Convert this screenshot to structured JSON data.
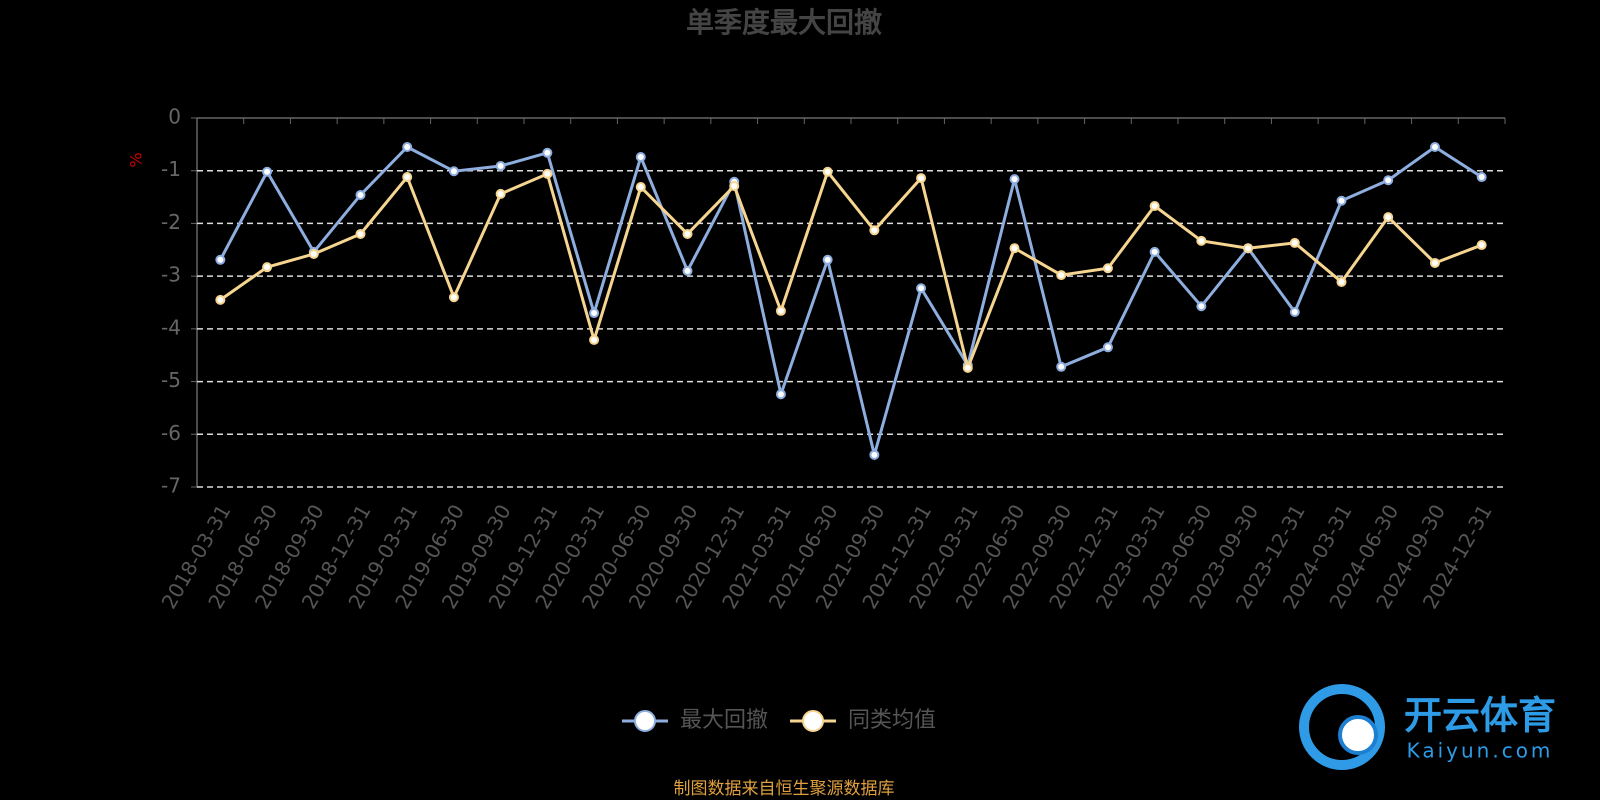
{
  "chart_data": {
    "type": "line",
    "title": "单季度最大回撤",
    "y_label": "%",
    "source": "制图数据来自恒生聚源数据库",
    "categories": [
      "2018-03-31",
      "2018-06-30",
      "2018-09-30",
      "2018-12-31",
      "2019-03-31",
      "2019-06-30",
      "2019-09-30",
      "2019-12-31",
      "2020-03-31",
      "2020-06-30",
      "2020-09-30",
      "2020-12-31",
      "2021-03-31",
      "2021-06-30",
      "2021-09-30",
      "2021-12-31",
      "2022-03-31",
      "2022-06-30",
      "2022-09-30",
      "2022-12-31",
      "2023-03-31",
      "2023-06-30",
      "2023-09-30",
      "2023-12-31",
      "2024-03-31",
      "2024-06-30",
      "2024-09-30",
      "2024-12-31"
    ],
    "series": [
      {
        "name": "最大回撤",
        "color": "#8eaee0",
        "values": [
          -2.69,
          -1.02,
          -2.54,
          -1.46,
          -0.55,
          -1.01,
          -0.91,
          -0.66,
          -3.7,
          -0.74,
          -2.9,
          -1.21,
          -5.24,
          -2.69,
          -6.39,
          -3.23,
          -4.69,
          -1.16,
          -4.72,
          -4.35,
          -2.54,
          -3.57,
          -2.47,
          -3.68,
          -1.57,
          -1.18,
          -0.55,
          -1.12
        ]
      },
      {
        "name": "同类均值",
        "color": "#f6d590",
        "values": [
          -3.45,
          -2.83,
          -2.58,
          -2.2,
          -1.12,
          -3.4,
          -1.44,
          -1.06,
          -4.21,
          -1.31,
          -2.2,
          -1.29,
          -3.66,
          -1.02,
          -2.13,
          -1.14,
          -4.74,
          -2.47,
          -2.98,
          -2.85,
          -1.67,
          -2.33,
          -2.47,
          -2.37,
          -3.11,
          -1.88,
          -2.75,
          -2.41
        ]
      }
    ],
    "ylim": [
      -7,
      0
    ],
    "yticks": [
      0,
      -1,
      -2,
      -3,
      -4,
      -5,
      -6,
      -7
    ],
    "grid": true
  },
  "watermark": {
    "brand": "开云体育",
    "site": "Kaiyun.com"
  }
}
